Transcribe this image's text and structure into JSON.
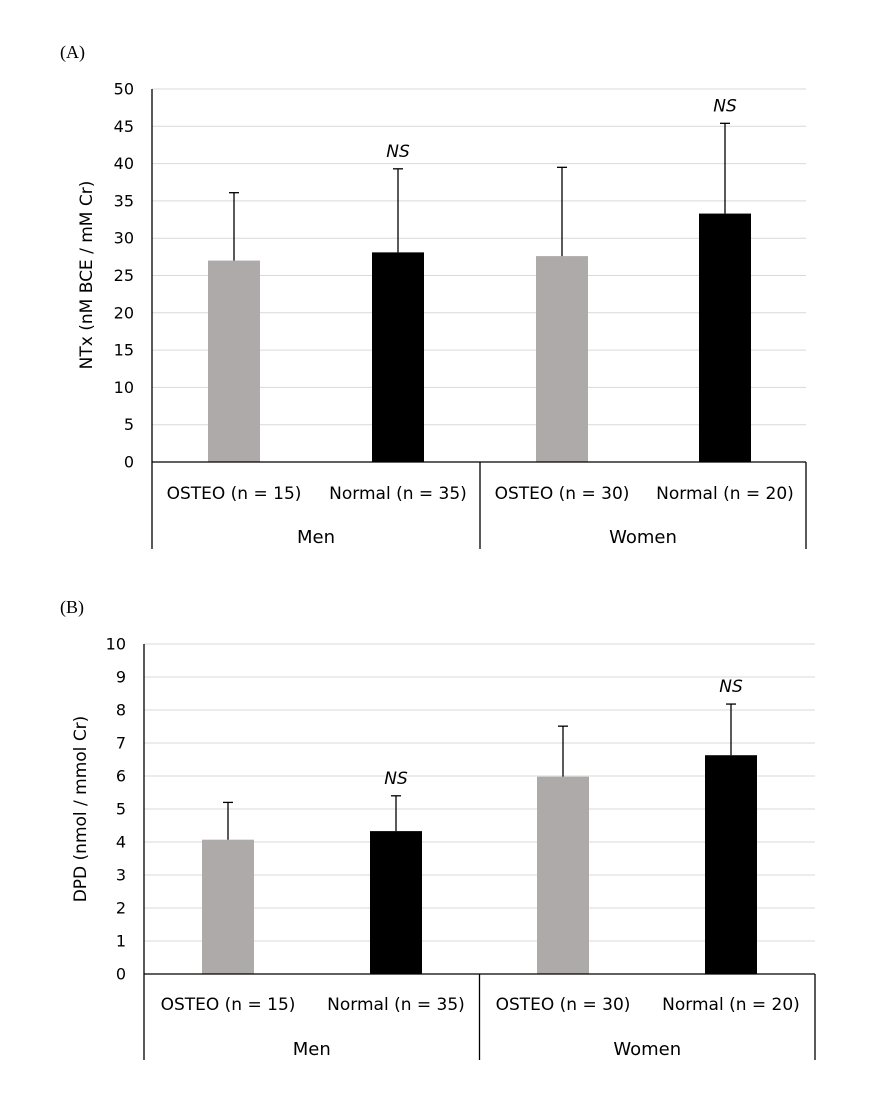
{
  "chart_data": [
    {
      "panel": "(A)",
      "type": "bar",
      "ylabel": "NTx  (nM BCE / mM Cr)",
      "ylim": [
        0,
        50
      ],
      "yticks": [
        0,
        5,
        10,
        15,
        20,
        25,
        30,
        35,
        40,
        45,
        50
      ],
      "grid": true,
      "bars": [
        {
          "label": "OSTEO (n = 15)",
          "group": "Men",
          "value": 27.0,
          "error": 9.1,
          "color": "#aeaaaa",
          "sig": ""
        },
        {
          "label": "Normal (n = 35)",
          "group": "Men",
          "value": 28.1,
          "error": 11.2,
          "color": "#000000",
          "sig": "NS"
        },
        {
          "label": "OSTEO (n = 30)",
          "group": "Women",
          "value": 27.6,
          "error": 11.9,
          "color": "#aeaaaa",
          "sig": ""
        },
        {
          "label": "Normal (n = 20)",
          "group": "Women",
          "value": 33.3,
          "error": 12.1,
          "color": "#000000",
          "sig": "NS"
        }
      ],
      "groups": [
        "Men",
        "Women"
      ]
    },
    {
      "panel": "(B)",
      "type": "bar",
      "ylabel": "DPD (nmol / mmol Cr)",
      "ylim": [
        0,
        10
      ],
      "yticks": [
        0,
        1,
        2,
        3,
        4,
        5,
        6,
        7,
        8,
        9,
        10
      ],
      "grid": true,
      "bars": [
        {
          "label": "OSTEO (n = 15)",
          "group": "Men",
          "value": 4.07,
          "error": 1.13,
          "color": "#aeaaaa",
          "sig": ""
        },
        {
          "label": "Normal (n = 35)",
          "group": "Men",
          "value": 4.33,
          "error": 1.07,
          "color": "#000000",
          "sig": "NS"
        },
        {
          "label": "OSTEO (n = 30)",
          "group": "Women",
          "value": 5.98,
          "error": 1.53,
          "color": "#aeaaaa",
          "sig": ""
        },
        {
          "label": "Normal (n = 20)",
          "group": "Women",
          "value": 6.63,
          "error": 1.55,
          "color": "#000000",
          "sig": "NS"
        }
      ],
      "groups": [
        "Men",
        "Women"
      ]
    }
  ]
}
